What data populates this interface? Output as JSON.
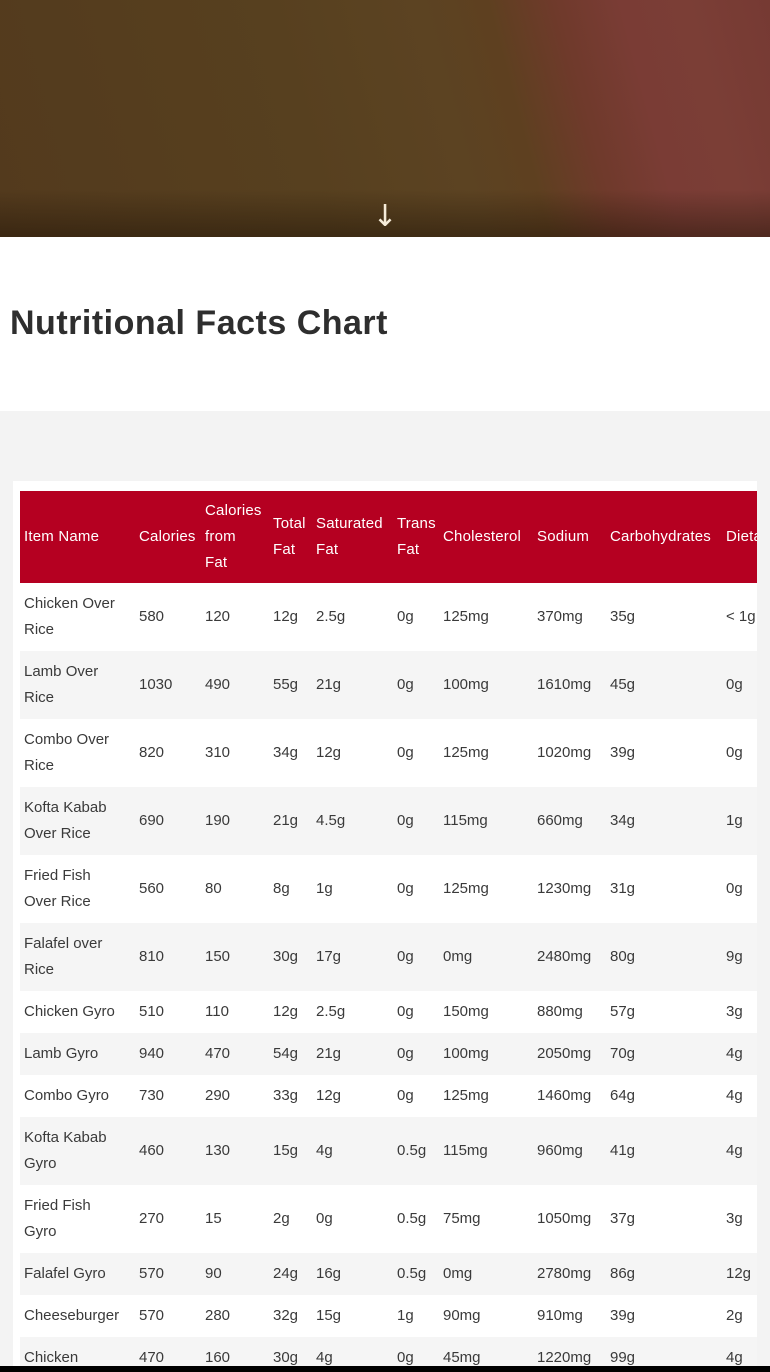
{
  "hero": {
    "scroll_arrow": "↓"
  },
  "page": {
    "title": "Nutritional Facts Chart"
  },
  "colors": {
    "table_header_bg": "#b50021",
    "row_stripe": "#f5f5f5",
    "section_bg": "#f3f3f3",
    "hero_brown": "#57401f",
    "hero_maroon": "#7a3c35"
  },
  "table": {
    "columns": [
      "Item Name",
      "Calories",
      "Calories from Fat",
      "Total Fat",
      "Saturated Fat",
      "Trans Fat",
      "Cholesterol",
      "Sodium",
      "Carbohydrates",
      "Dietary Fiber"
    ],
    "rows": [
      [
        "Chicken Over Rice",
        "580",
        "120",
        "12g",
        "2.5g",
        "0g",
        "125mg",
        "370mg",
        "35g",
        "< 1g"
      ],
      [
        "Lamb Over Rice",
        "1030",
        "490",
        "55g",
        "21g",
        "0g",
        "100mg",
        "1610mg",
        "45g",
        "0g"
      ],
      [
        "Combo Over Rice",
        "820",
        "310",
        "34g",
        "12g",
        "0g",
        "125mg",
        "1020mg",
        "39g",
        "0g"
      ],
      [
        "Kofta Kabab Over Rice",
        "690",
        "190",
        "21g",
        "4.5g",
        "0g",
        "115mg",
        "660mg",
        "34g",
        "1g"
      ],
      [
        "Fried Fish Over Rice",
        "560",
        "80",
        "8g",
        "1g",
        "0g",
        "125mg",
        "1230mg",
        "31g",
        "0g"
      ],
      [
        "Falafel over Rice",
        "810",
        "150",
        "30g",
        "17g",
        "0g",
        "0mg",
        "2480mg",
        "80g",
        "9g"
      ],
      [
        "Chicken Gyro",
        "510",
        "110",
        "12g",
        "2.5g",
        "0g",
        "150mg",
        "880mg",
        "57g",
        "3g"
      ],
      [
        "Lamb Gyro",
        "940",
        "470",
        "54g",
        "21g",
        "0g",
        "100mg",
        "2050mg",
        "70g",
        "4g"
      ],
      [
        "Combo Gyro",
        "730",
        "290",
        "33g",
        "12g",
        "0g",
        "125mg",
        "1460mg",
        "64g",
        "4g"
      ],
      [
        "Kofta Kabab Gyro",
        "460",
        "130",
        "15g",
        "4g",
        "0.5g",
        "115mg",
        "960mg",
        "41g",
        "4g"
      ],
      [
        "Fried Fish Gyro",
        "270",
        "15",
        "2g",
        "0g",
        "0.5g",
        "75mg",
        "1050mg",
        "37g",
        "3g"
      ],
      [
        "Falafel Gyro",
        "570",
        "90",
        "24g",
        "16g",
        "0.5g",
        "0mg",
        "2780mg",
        "86g",
        "12g"
      ],
      [
        "Cheeseburger",
        "570",
        "280",
        "32g",
        "15g",
        "1g",
        "90mg",
        "910mg",
        "39g",
        "2g"
      ],
      [
        "Chicken",
        "470",
        "160",
        "30g",
        "4g",
        "0g",
        "45mg",
        "1220mg",
        "99g",
        "4g"
      ]
    ]
  }
}
